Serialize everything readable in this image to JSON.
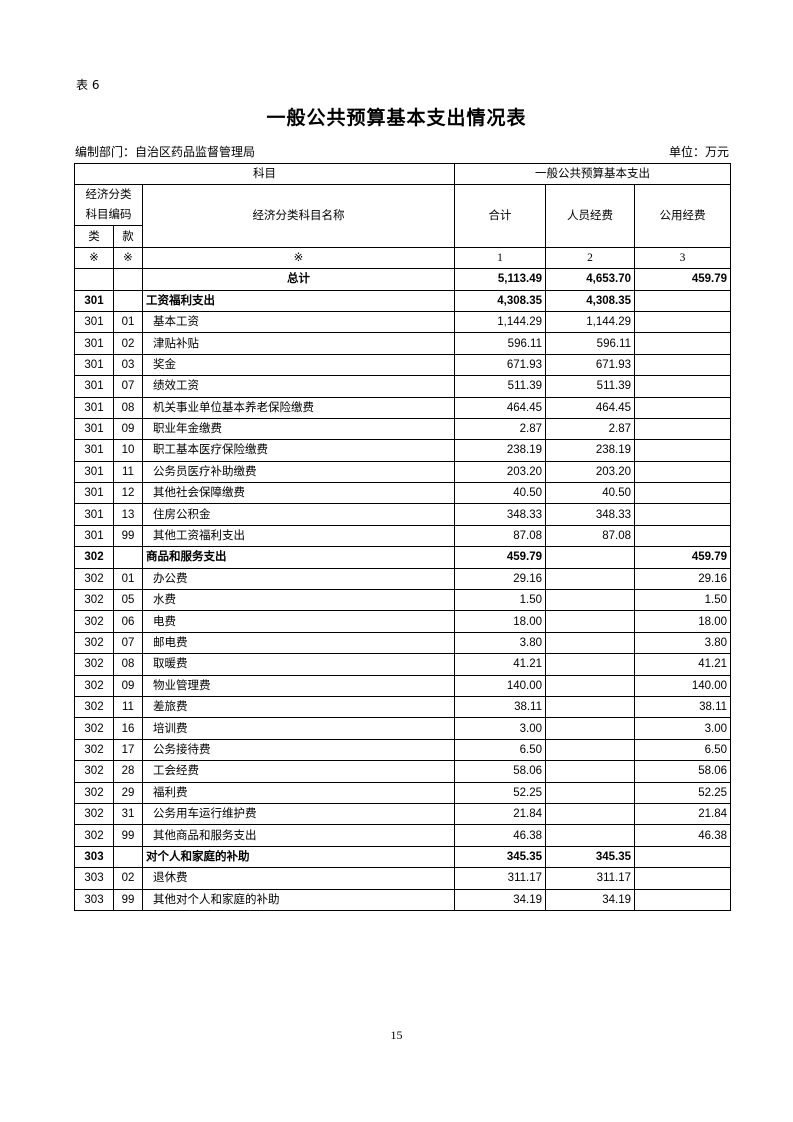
{
  "table_label": "表 6",
  "title": "一般公共预算基本支出情况表",
  "dept": "编制部门：自治区药品监督管理局",
  "unit": "单位：万元",
  "header": {
    "subject": "科目",
    "expense_group": "一般公共预算基本支出",
    "code": "经济分类科目编码",
    "name": "经济分类科目名称",
    "total": "合计",
    "personnel": "人员经费",
    "public": "公用经费",
    "class": "类",
    "item": "款",
    "mark": "※",
    "col1": "1",
    "col2": "2",
    "col3": "3"
  },
  "total_row": {
    "label": "总计",
    "total": "5,113.49",
    "personnel": "4,653.70",
    "public": "459.79"
  },
  "rows": [
    {
      "cls": "301",
      "kuan": "",
      "name": "工资福利支出",
      "total": "4,308.35",
      "personnel": "4,308.35",
      "public": "",
      "bold": true
    },
    {
      "cls": "301",
      "kuan": "01",
      "name": "基本工资",
      "total": "1,144.29",
      "personnel": "1,144.29",
      "public": ""
    },
    {
      "cls": "301",
      "kuan": "02",
      "name": "津贴补贴",
      "total": "596.11",
      "personnel": "596.11",
      "public": ""
    },
    {
      "cls": "301",
      "kuan": "03",
      "name": "奖金",
      "total": "671.93",
      "personnel": "671.93",
      "public": ""
    },
    {
      "cls": "301",
      "kuan": "07",
      "name": "绩效工资",
      "total": "511.39",
      "personnel": "511.39",
      "public": ""
    },
    {
      "cls": "301",
      "kuan": "08",
      "name": "机关事业单位基本养老保险缴费",
      "total": "464.45",
      "personnel": "464.45",
      "public": ""
    },
    {
      "cls": "301",
      "kuan": "09",
      "name": "职业年金缴费",
      "total": "2.87",
      "personnel": "2.87",
      "public": ""
    },
    {
      "cls": "301",
      "kuan": "10",
      "name": "职工基本医疗保险缴费",
      "total": "238.19",
      "personnel": "238.19",
      "public": ""
    },
    {
      "cls": "301",
      "kuan": "11",
      "name": "公务员医疗补助缴费",
      "total": "203.20",
      "personnel": "203.20",
      "public": ""
    },
    {
      "cls": "301",
      "kuan": "12",
      "name": "其他社会保障缴费",
      "total": "40.50",
      "personnel": "40.50",
      "public": ""
    },
    {
      "cls": "301",
      "kuan": "13",
      "name": "住房公积金",
      "total": "348.33",
      "personnel": "348.33",
      "public": ""
    },
    {
      "cls": "301",
      "kuan": "99",
      "name": "其他工资福利支出",
      "total": "87.08",
      "personnel": "87.08",
      "public": ""
    },
    {
      "cls": "302",
      "kuan": "",
      "name": "商品和服务支出",
      "total": "459.79",
      "personnel": "",
      "public": "459.79",
      "bold": true
    },
    {
      "cls": "302",
      "kuan": "01",
      "name": "办公费",
      "total": "29.16",
      "personnel": "",
      "public": "29.16"
    },
    {
      "cls": "302",
      "kuan": "05",
      "name": "水费",
      "total": "1.50",
      "personnel": "",
      "public": "1.50"
    },
    {
      "cls": "302",
      "kuan": "06",
      "name": "电费",
      "total": "18.00",
      "personnel": "",
      "public": "18.00"
    },
    {
      "cls": "302",
      "kuan": "07",
      "name": "邮电费",
      "total": "3.80",
      "personnel": "",
      "public": "3.80"
    },
    {
      "cls": "302",
      "kuan": "08",
      "name": "取暖费",
      "total": "41.21",
      "personnel": "",
      "public": "41.21"
    },
    {
      "cls": "302",
      "kuan": "09",
      "name": "物业管理费",
      "total": "140.00",
      "personnel": "",
      "public": "140.00"
    },
    {
      "cls": "302",
      "kuan": "11",
      "name": "差旅费",
      "total": "38.11",
      "personnel": "",
      "public": "38.11"
    },
    {
      "cls": "302",
      "kuan": "16",
      "name": "培训费",
      "total": "3.00",
      "personnel": "",
      "public": "3.00"
    },
    {
      "cls": "302",
      "kuan": "17",
      "name": "公务接待费",
      "total": "6.50",
      "personnel": "",
      "public": "6.50"
    },
    {
      "cls": "302",
      "kuan": "28",
      "name": "工会经费",
      "total": "58.06",
      "personnel": "",
      "public": "58.06"
    },
    {
      "cls": "302",
      "kuan": "29",
      "name": "福利费",
      "total": "52.25",
      "personnel": "",
      "public": "52.25"
    },
    {
      "cls": "302",
      "kuan": "31",
      "name": "公务用车运行维护费",
      "total": "21.84",
      "personnel": "",
      "public": "21.84"
    },
    {
      "cls": "302",
      "kuan": "99",
      "name": "其他商品和服务支出",
      "total": "46.38",
      "personnel": "",
      "public": "46.38"
    },
    {
      "cls": "303",
      "kuan": "",
      "name": "对个人和家庭的补助",
      "total": "345.35",
      "personnel": "345.35",
      "public": "",
      "bold": true
    },
    {
      "cls": "303",
      "kuan": "02",
      "name": "退休费",
      "total": "311.17",
      "personnel": "311.17",
      "public": ""
    },
    {
      "cls": "303",
      "kuan": "99",
      "name": "其他对个人和家庭的补助",
      "total": "34.19",
      "personnel": "34.19",
      "public": ""
    }
  ],
  "page_number": "15"
}
